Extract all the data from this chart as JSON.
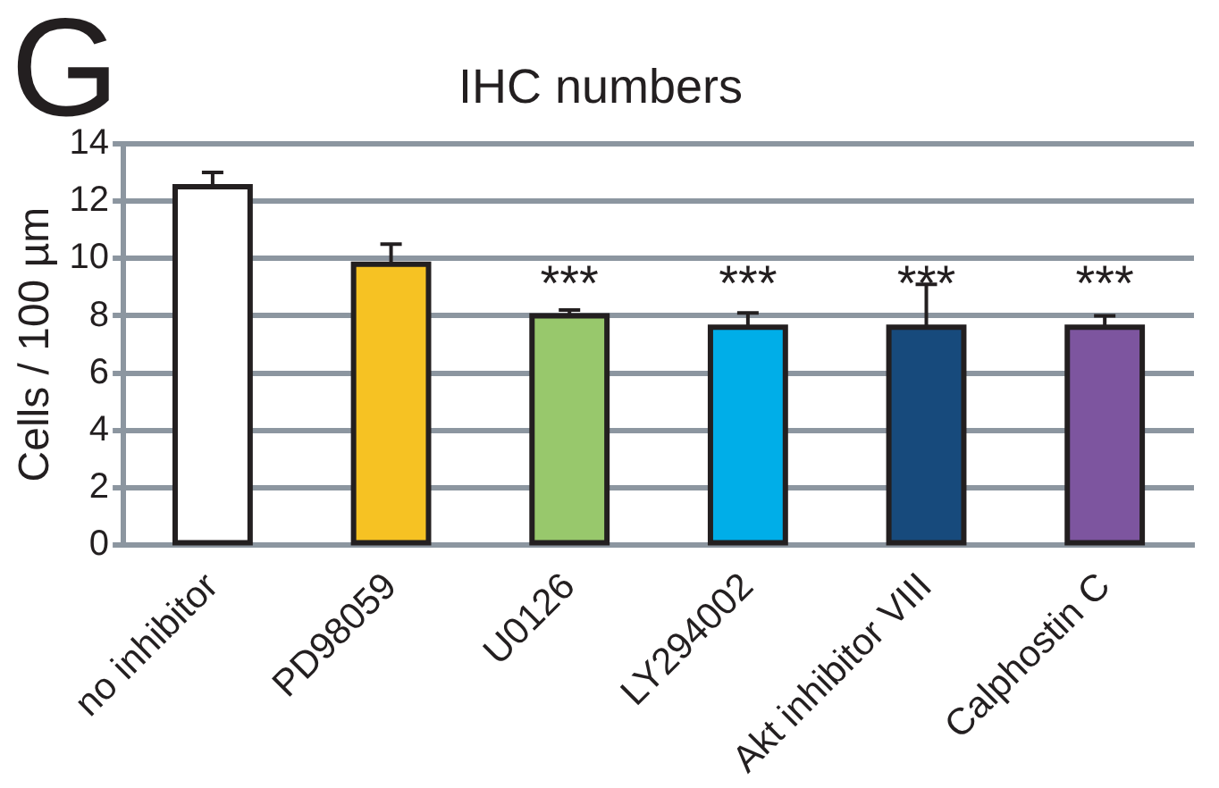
{
  "chart_data": {
    "type": "bar",
    "title": "IHC numbers",
    "ylabel": "Cells / 100 µm",
    "categories": [
      "no inhibitor",
      "PD98059",
      "U0126",
      "LY294002",
      "Akt inhibitor VIII",
      "Calphostin C"
    ],
    "values": [
      12.5,
      9.8,
      8.0,
      7.6,
      7.6,
      7.6
    ],
    "colors": [
      "#ffffff",
      "#f6c223",
      "#98c86c",
      "#00aee8",
      "#174a7c",
      "#7d559f"
    ],
    "errors": [
      [
        12.5,
        13.0
      ],
      [
        9.8,
        10.5
      ],
      [
        8.0,
        8.2
      ],
      [
        7.6,
        8.1
      ],
      [
        7.6,
        9.1
      ],
      [
        7.6,
        8.0
      ]
    ],
    "ylim": [
      0,
      14
    ],
    "yticks": [
      0,
      2,
      4,
      6,
      8,
      10,
      12,
      14
    ],
    "grid": "y",
    "legend": false,
    "annotations": [
      "G",
      "***",
      "***",
      "***",
      "***"
    ]
  }
}
